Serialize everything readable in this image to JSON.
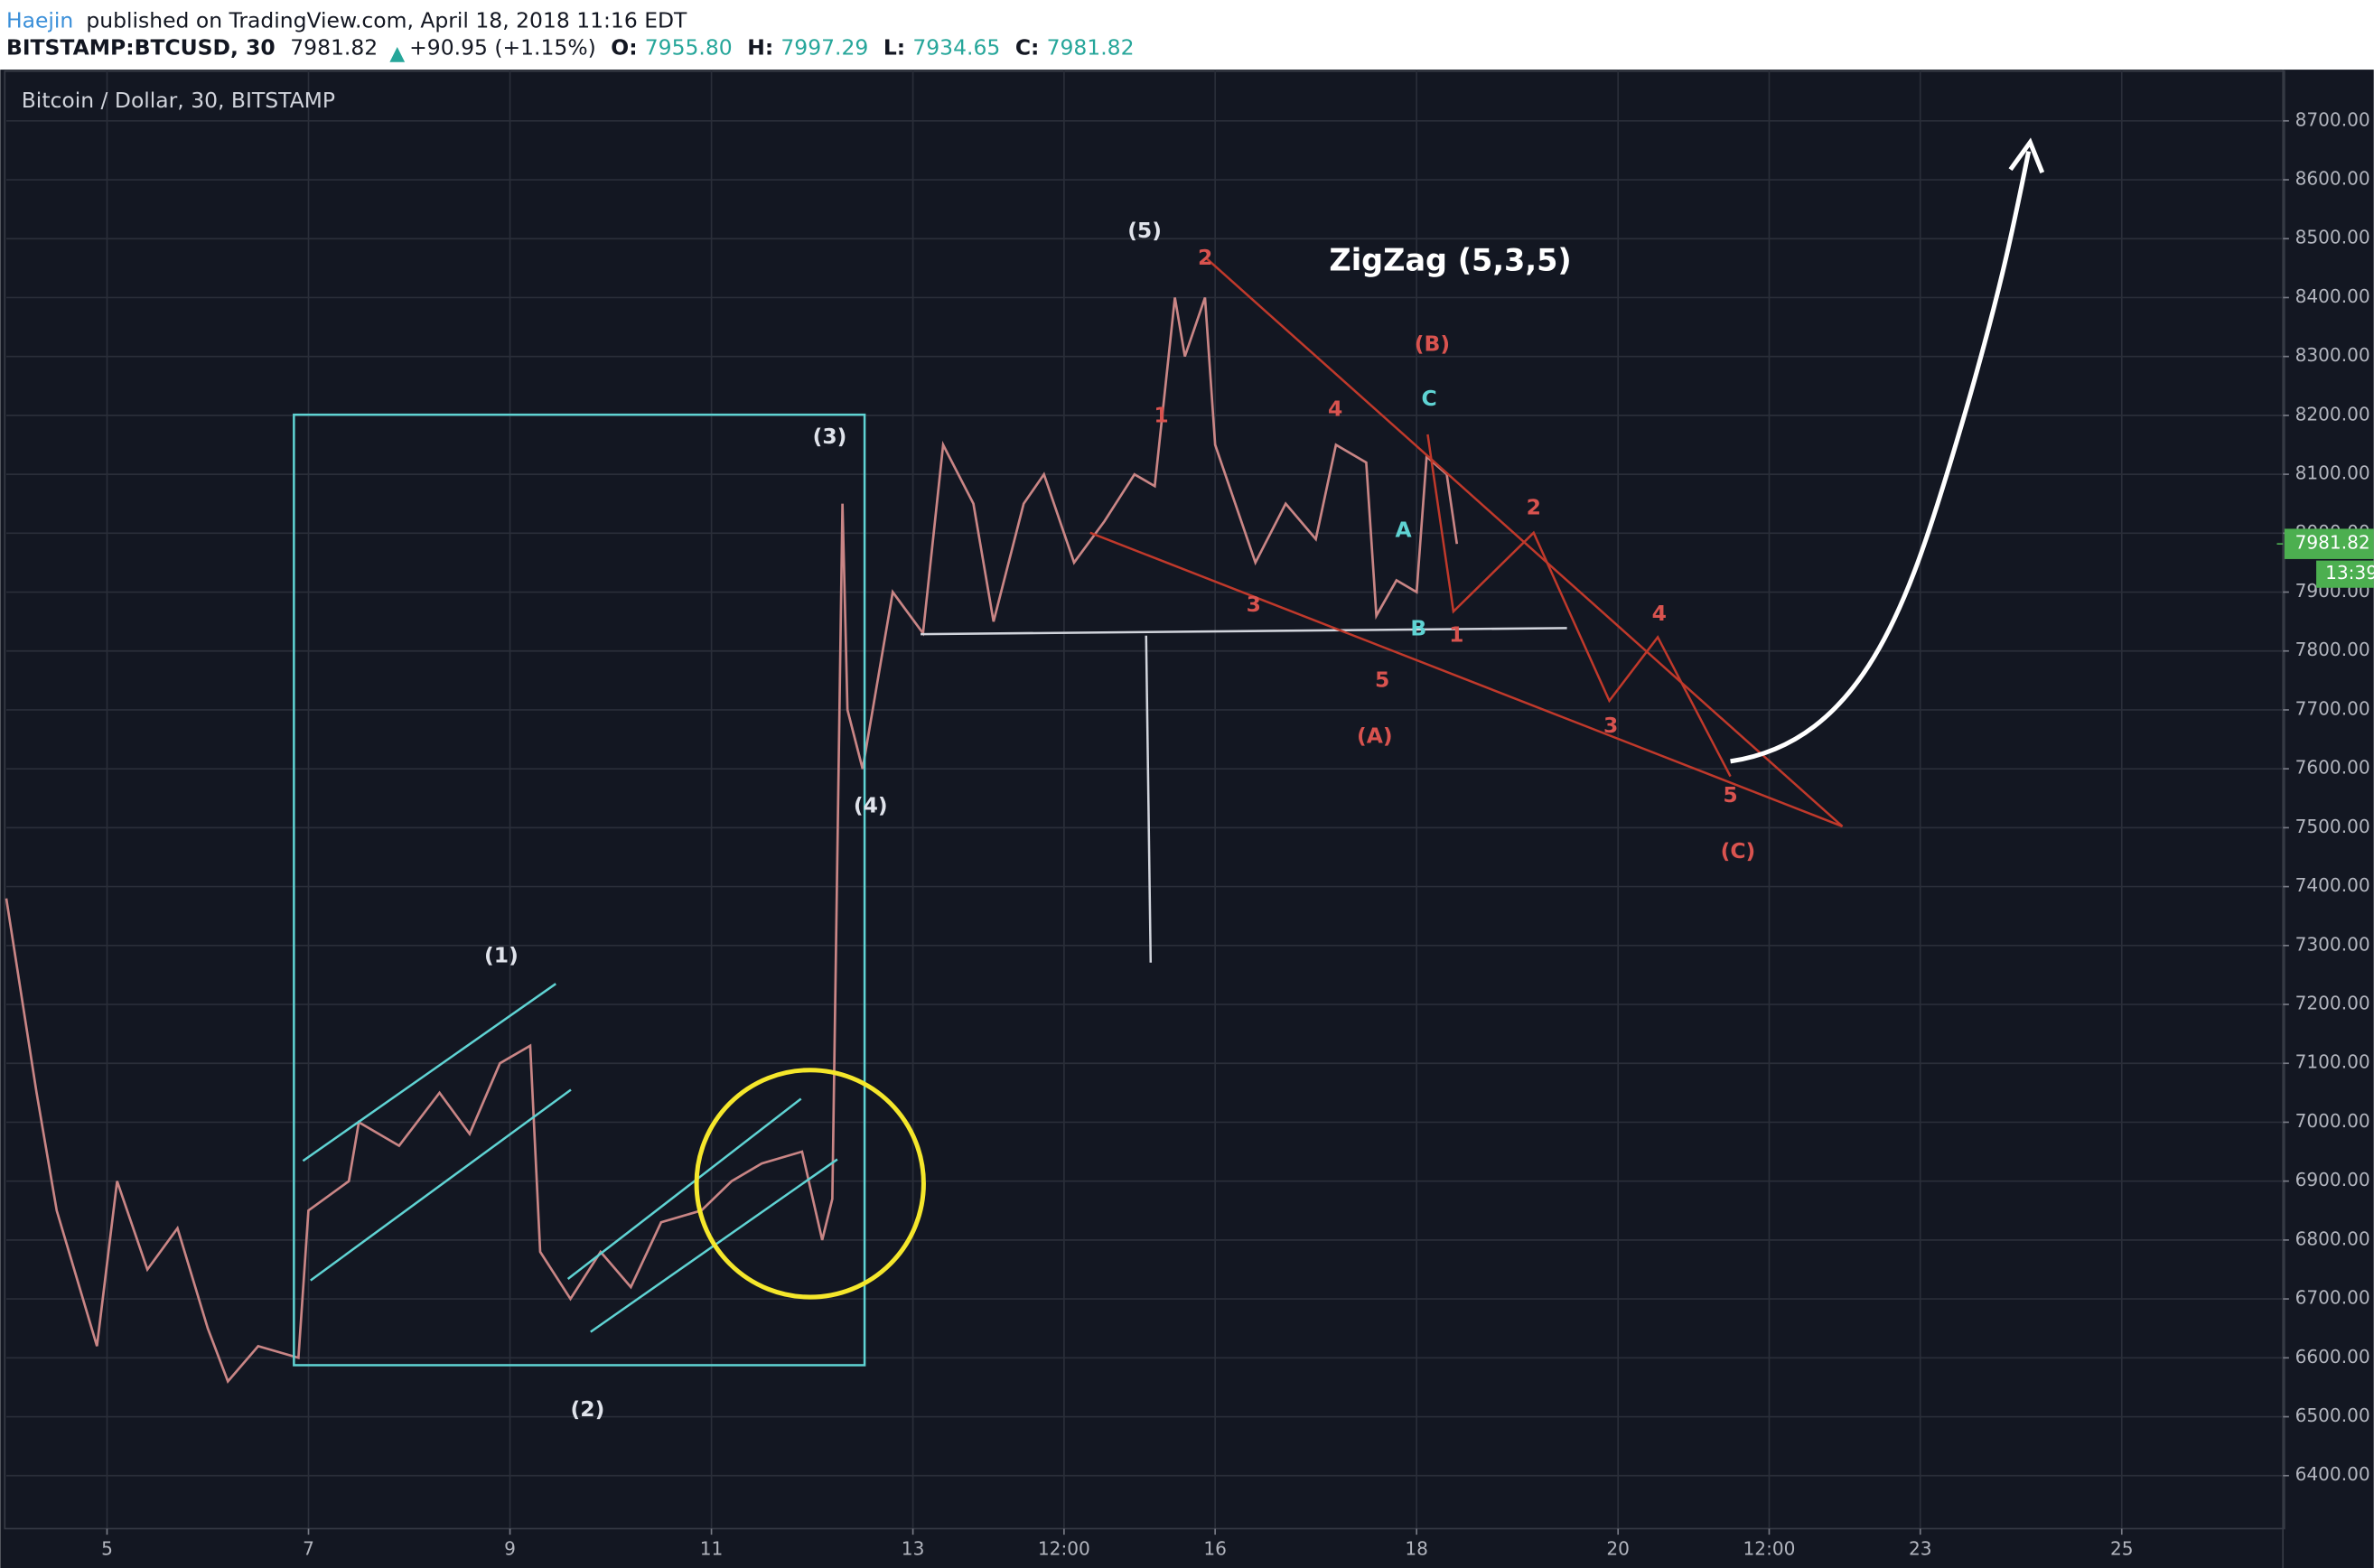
{
  "header": {
    "author": "Haejin",
    "published": "published on TradingView.com, April 18, 2018 11:16 EDT",
    "symbol": "BITSTAMP:BTCUSD, 30",
    "last": "7981.82",
    "change": "+90.95 (+1.15%)",
    "open_label": "O:",
    "open": "7955.80",
    "high_label": "H:",
    "high": "7997.29",
    "low_label": "L:",
    "low": "7934.65",
    "close_label": "C:",
    "close": "7981.82"
  },
  "chart_data": {
    "type": "line",
    "title": "Bitcoin / Dollar, 30, BITSTAMP",
    "heading": "ZigZag (5,3,5)",
    "color": "#c98585",
    "x": [
      4.0,
      4.3,
      4.5,
      4.9,
      5.1,
      5.4,
      5.7,
      6.0,
      6.2,
      6.5,
      6.9,
      7.0,
      7.4,
      7.5,
      7.9,
      8.3,
      8.6,
      8.9,
      9.2,
      9.3,
      9.6,
      9.9,
      10.2,
      10.5,
      10.9,
      11.2,
      11.5,
      11.9,
      12.1,
      12.2,
      12.3,
      12.35,
      12.5,
      12.8,
      13.1,
      13.3,
      13.6,
      13.8,
      14.1,
      14.3,
      14.6,
      14.9,
      15.2,
      15.4,
      15.6,
      15.7,
      15.9,
      16.0,
      16.2,
      16.4,
      16.7,
      17.0,
      17.2,
      17.5,
      17.6,
      17.8,
      18.0,
      18.1,
      18.3,
      18.4
    ],
    "values": [
      7380,
      7050,
      6850,
      6620,
      6900,
      6750,
      6820,
      6650,
      6560,
      6620,
      6600,
      6850,
      6900,
      7000,
      6960,
      7050,
      6980,
      7100,
      7130,
      6780,
      6700,
      6780,
      6720,
      6830,
      6850,
      6900,
      6930,
      6950,
      6800,
      6870,
      8050,
      7700,
      7600,
      7900,
      7830,
      8150,
      8050,
      7850,
      8050,
      8100,
      7950,
      8020,
      8100,
      8080,
      8400,
      8300,
      8400,
      8150,
      8050,
      7950,
      8050,
      7990,
      8150,
      8120,
      7860,
      7920,
      7900,
      8130,
      8100,
      7981.82
    ],
    "xlim": [
      4.0,
      26.6
    ],
    "ylim": [
      6310,
      8787
    ],
    "xticks": [
      5,
      7,
      9,
      11,
      13,
      {
        "value": 14.5,
        "label": "12:00"
      },
      16,
      18,
      20,
      {
        "value": 21.5,
        "label": "12:00"
      },
      23,
      25
    ],
    "yticks": [
      {
        "value": 6400,
        "label": "6400.00"
      },
      {
        "value": 6500,
        "label": "6500.00"
      },
      {
        "value": 6600,
        "label": "6600.00"
      },
      {
        "value": 6700,
        "label": "6700.00"
      },
      {
        "value": 6800,
        "label": "6800.00"
      },
      {
        "value": 6900,
        "label": "6900.00"
      },
      {
        "value": 7000,
        "label": "7000.00"
      },
      {
        "value": 7100,
        "label": "7100.00"
      },
      {
        "value": 7200,
        "label": "7200.00"
      },
      {
        "value": 7300,
        "label": "7300.00"
      },
      {
        "value": 7400,
        "label": "7400.00"
      },
      {
        "value": 7500,
        "label": "7500.00"
      },
      {
        "value": 7600,
        "label": "7600.00"
      },
      {
        "value": 7700,
        "label": "7700.00"
      },
      {
        "value": 7800,
        "label": "7800.00"
      },
      {
        "value": 7900,
        "label": "7900.00"
      },
      {
        "value": 8000,
        "label": "8000.00"
      },
      {
        "value": 8100,
        "label": "8100.00"
      },
      {
        "value": 8200,
        "label": "8200.00"
      },
      {
        "value": 8300,
        "label": "8300.00"
      },
      {
        "value": 8400,
        "label": "8400.00"
      },
      {
        "value": 8500,
        "label": "8500.00"
      },
      {
        "value": 8600,
        "label": "8600.00"
      },
      {
        "value": 8700,
        "label": "8700.00"
      }
    ],
    "grid": true,
    "price_tag": {
      "value": 7981.82,
      "label": "7981.82"
    },
    "countdown": "13:39",
    "annotations": [
      {
        "text": "(1)",
        "color": "#e0e3eb"
      },
      {
        "text": "(2)",
        "color": "#e0e3eb"
      },
      {
        "text": "(3)",
        "color": "#e0e3eb"
      },
      {
        "text": "(4)",
        "color": "#e0e3eb"
      },
      {
        "text": "(5)",
        "color": "#e0e3eb"
      },
      {
        "text": "2",
        "color": "#d9534f"
      },
      {
        "text": "1",
        "color": "#d9534f"
      },
      {
        "text": "3",
        "color": "#d9534f"
      },
      {
        "text": "4",
        "color": "#d9534f"
      },
      {
        "text": "5",
        "color": "#d9534f"
      },
      {
        "text": "(A)",
        "color": "#d9534f"
      },
      {
        "text": "(B)",
        "color": "#d9534f"
      },
      {
        "text": "(C)",
        "color": "#d9534f"
      },
      {
        "text": "1",
        "color": "#d9534f"
      },
      {
        "text": "2",
        "color": "#d9534f"
      },
      {
        "text": "3",
        "color": "#d9534f"
      },
      {
        "text": "4",
        "color": "#d9534f"
      },
      {
        "text": "5",
        "color": "#d9534f"
      },
      {
        "text": "A",
        "color": "#5fd3d3"
      },
      {
        "text": "B",
        "color": "#5fd3d3"
      },
      {
        "text": "C",
        "color": "#5fd3d3"
      }
    ]
  }
}
